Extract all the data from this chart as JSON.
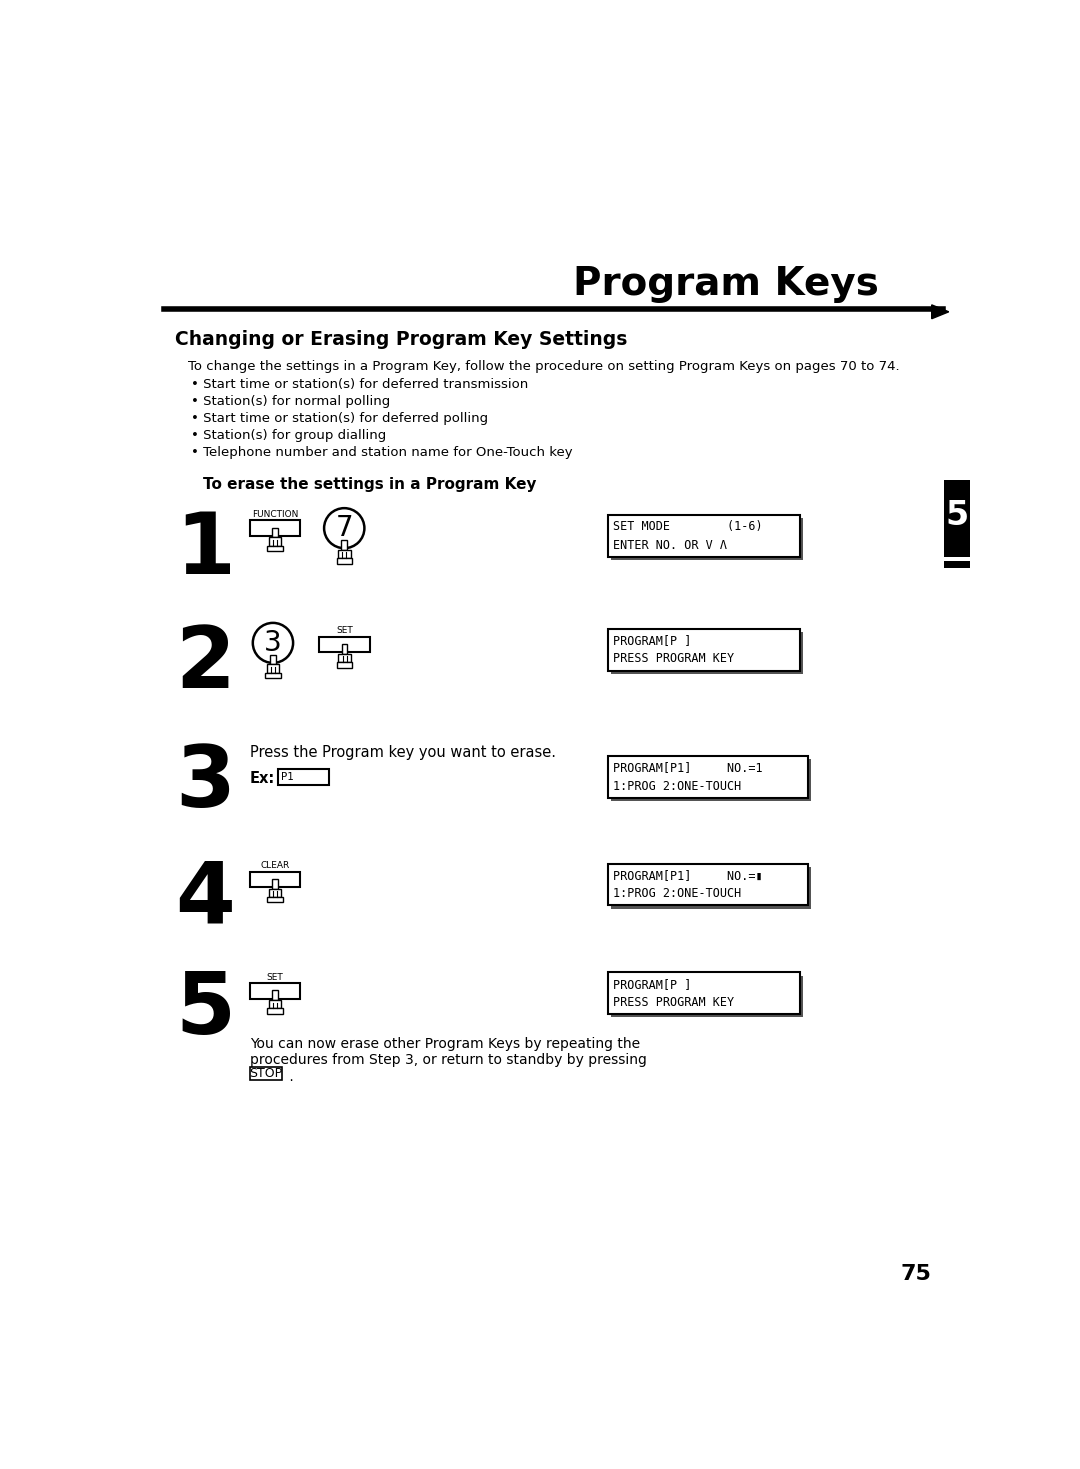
{
  "title": "Program Keys",
  "section_title": "Changing or Erasing Program Key Settings",
  "intro_text": "To change the settings in a Program Key, follow the procedure on setting Program Keys on pages 70 to 74.",
  "bullet_points": [
    "Start time or station(s) for deferred transmission",
    "Station(s) for normal polling",
    "Start time or station(s) for deferred polling",
    "Station(s) for group dialling",
    "Telephone number and station name for One-Touch key"
  ],
  "subsection_title": "To erase the settings in a Program Key",
  "steps": [
    {
      "number": "1",
      "display_line1": "SET MODE        (1-6)",
      "display_line2": "ENTER NO. OR V Λ"
    },
    {
      "number": "2",
      "display_line1": "PROGRAM[P ]",
      "display_line2": "PRESS PROGRAM KEY"
    },
    {
      "number": "3",
      "description": "Press the Program key you want to erase.",
      "display_line1": "PROGRAM[P1]     NO.=1",
      "display_line2": "1:PROG 2:ONE-TOUCH"
    },
    {
      "number": "4",
      "display_line1": "PROGRAM[P1]     NO.=▮",
      "display_line2": "1:PROG 2:ONE-TOUCH"
    },
    {
      "number": "5",
      "display_line1": "PROGRAM[P ]",
      "display_line2": "PRESS PROGRAM KEY"
    }
  ],
  "footer_line1": "You can now erase other Program Keys by repeating the",
  "footer_line2": "procedures from Step 3, or return to standby by pressing",
  "footer_line3_pre": "",
  "footer_stop": "STOP",
  "footer_line3_post": " .",
  "page_number": "75",
  "tab_number": "5",
  "bg_color": "#ffffff",
  "text_color": "#000000"
}
